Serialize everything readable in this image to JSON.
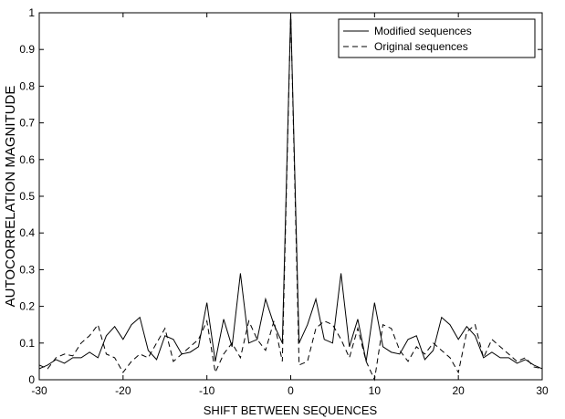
{
  "chart_data": {
    "type": "line",
    "xlabel": "SHIFT BETWEEN SEQUENCES",
    "ylabel": "AUTOCORRELATION MAGNITUDE",
    "xlim": [
      -30,
      30
    ],
    "ylim": [
      0,
      1
    ],
    "xticks": [
      -30,
      -20,
      -10,
      0,
      10,
      20,
      30
    ],
    "yticks": [
      0,
      0.1,
      0.2,
      0.3,
      0.4,
      0.5,
      0.6,
      0.7,
      0.8,
      0.9,
      1
    ],
    "grid": false,
    "legend_position": "top-right",
    "x": [
      -30,
      -29,
      -28,
      -27,
      -26,
      -25,
      -24,
      -23,
      -22,
      -21,
      -20,
      -19,
      -18,
      -17,
      -16,
      -15,
      -14,
      -13,
      -12,
      -11,
      -10,
      -9,
      -8,
      -7,
      -6,
      -5,
      -4,
      -3,
      -2,
      -1,
      0,
      1,
      2,
      3,
      4,
      5,
      6,
      7,
      8,
      9,
      10,
      11,
      12,
      13,
      14,
      15,
      16,
      17,
      18,
      19,
      20,
      21,
      22,
      23,
      24,
      25,
      26,
      27,
      28,
      29,
      30
    ],
    "series": [
      {
        "name": "Modified sequences",
        "style": "solid",
        "color": "#000000",
        "values": [
          0.03,
          0.04,
          0.055,
          0.045,
          0.06,
          0.06,
          0.075,
          0.06,
          0.12,
          0.145,
          0.11,
          0.15,
          0.17,
          0.08,
          0.055,
          0.12,
          0.11,
          0.07,
          0.075,
          0.09,
          0.21,
          0.05,
          0.165,
          0.09,
          0.29,
          0.1,
          0.11,
          0.22,
          0.15,
          0.1,
          1.0,
          0.1,
          0.15,
          0.22,
          0.11,
          0.1,
          0.29,
          0.09,
          0.165,
          0.05,
          0.21,
          0.09,
          0.075,
          0.07,
          0.11,
          0.12,
          0.055,
          0.08,
          0.17,
          0.15,
          0.11,
          0.145,
          0.12,
          0.06,
          0.075,
          0.06,
          0.06,
          0.045,
          0.055,
          0.04,
          0.03
        ]
      },
      {
        "name": "Original sequences",
        "style": "dashed",
        "color": "#000000",
        "values": [
          0.04,
          0.03,
          0.06,
          0.07,
          0.065,
          0.1,
          0.12,
          0.15,
          0.07,
          0.06,
          0.02,
          0.05,
          0.07,
          0.06,
          0.1,
          0.14,
          0.05,
          0.07,
          0.09,
          0.11,
          0.16,
          0.02,
          0.07,
          0.1,
          0.06,
          0.16,
          0.11,
          0.08,
          0.16,
          0.05,
          1.0,
          0.04,
          0.05,
          0.14,
          0.16,
          0.15,
          0.11,
          0.06,
          0.14,
          0.05,
          0.0,
          0.15,
          0.14,
          0.08,
          0.05,
          0.09,
          0.07,
          0.1,
          0.08,
          0.06,
          0.02,
          0.13,
          0.15,
          0.06,
          0.11,
          0.09,
          0.07,
          0.05,
          0.06,
          0.035,
          0.03
        ]
      }
    ]
  }
}
